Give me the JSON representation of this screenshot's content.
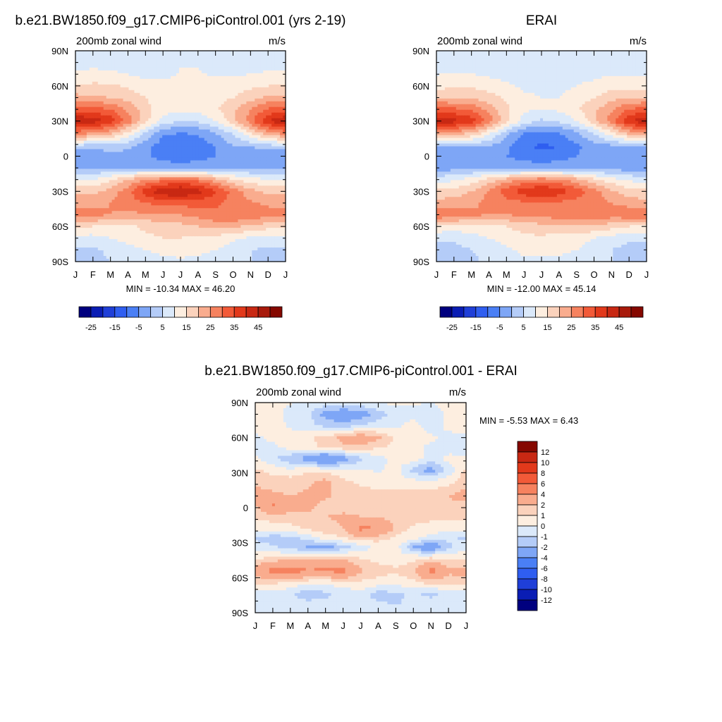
{
  "chart_data": [
    {
      "type": "heatmap",
      "id": "model",
      "title": "b.e21.BW1850.f09_g17.CMIP6-piControl.001 (yrs 2-19)",
      "subtitle_left": "200mb zonal wind",
      "subtitle_right": "m/s",
      "x_ticks": [
        "J",
        "F",
        "M",
        "A",
        "M",
        "J",
        "J",
        "A",
        "S",
        "O",
        "N",
        "D",
        "J"
      ],
      "y_ticks": [
        "90N",
        "60N",
        "30N",
        "0",
        "30S",
        "60S",
        "90S"
      ],
      "stats": "MIN = -10.34 MAX =  46.20",
      "colorbar_labels": [
        "-25",
        "-15",
        "-5",
        "5",
        "15",
        "25",
        "35",
        "45"
      ],
      "levels": [
        -30,
        -25,
        -20,
        -15,
        -10,
        -5,
        0,
        5,
        10,
        15,
        20,
        25,
        30,
        35,
        40,
        45,
        50
      ],
      "colors": [
        "#00007f",
        "#0a1db4",
        "#1f3fd8",
        "#2f5ef0",
        "#4a7ff5",
        "#7ea6f6",
        "#b4ccf8",
        "#dbe9fa",
        "#fdeee0",
        "#fbd2bc",
        "#f9ac8e",
        "#f6825f",
        "#f25a38",
        "#e2391b",
        "#c82813",
        "#a81a0b",
        "#850800"
      ],
      "bands": [
        {
          "lat": 90,
          "u": [
            7,
            7,
            6,
            6,
            6,
            6,
            7,
            7,
            6,
            6,
            6,
            7,
            7
          ]
        },
        {
          "lat": 75,
          "u": [
            9,
            10,
            9,
            8,
            7,
            8,
            10,
            10,
            9,
            8,
            8,
            9,
            9
          ]
        },
        {
          "lat": 60,
          "u": [
            15,
            16,
            16,
            14,
            12,
            11,
            11,
            11,
            11,
            12,
            14,
            15,
            15
          ]
        },
        {
          "lat": 50,
          "u": [
            22,
            21,
            20,
            18,
            15,
            12,
            12,
            12,
            13,
            15,
            18,
            21,
            22
          ]
        },
        {
          "lat": 40,
          "u": [
            33,
            32,
            30,
            24,
            17,
            12,
            11,
            12,
            14,
            19,
            25,
            31,
            33
          ]
        },
        {
          "lat": 30,
          "u": [
            45,
            43,
            38,
            28,
            17,
            8,
            5,
            6,
            10,
            18,
            28,
            40,
            45
          ]
        },
        {
          "lat": 20,
          "u": [
            28,
            26,
            22,
            14,
            4,
            -4,
            -5,
            -4,
            0,
            6,
            15,
            24,
            28
          ]
        },
        {
          "lat": 8,
          "u": [
            2,
            1,
            2,
            1,
            -3,
            -8,
            -10,
            -9,
            -5,
            -1,
            0,
            2,
            2
          ]
        },
        {
          "lat": 0,
          "u": [
            -4,
            -3,
            -2,
            -2,
            -4,
            -7,
            -8,
            -7,
            -5,
            -3,
            -3,
            -4,
            -4
          ]
        },
        {
          "lat": -10,
          "u": [
            -2,
            -1,
            0,
            0,
            0,
            -2,
            -3,
            -2,
            -1,
            0,
            -1,
            -2,
            -2
          ]
        },
        {
          "lat": -20,
          "u": [
            10,
            10,
            14,
            20,
            25,
            28,
            30,
            28,
            22,
            15,
            12,
            10,
            10
          ]
        },
        {
          "lat": -30,
          "u": [
            18,
            18,
            22,
            28,
            38,
            44,
            46,
            42,
            36,
            28,
            22,
            18,
            18
          ]
        },
        {
          "lat": -40,
          "u": [
            24,
            24,
            25,
            28,
            30,
            32,
            32,
            32,
            31,
            28,
            26,
            24,
            24
          ]
        },
        {
          "lat": -50,
          "u": [
            27,
            26,
            25,
            24,
            24,
            24,
            25,
            27,
            29,
            30,
            29,
            27,
            27
          ]
        },
        {
          "lat": -60,
          "u": [
            16,
            15,
            14,
            14,
            16,
            17,
            18,
            20,
            22,
            21,
            19,
            17,
            16
          ]
        },
        {
          "lat": -70,
          "u": [
            8,
            8,
            10,
            12,
            14,
            15,
            15,
            14,
            13,
            11,
            9,
            8,
            8
          ]
        },
        {
          "lat": -80,
          "u": [
            4,
            4,
            6,
            8,
            10,
            11,
            12,
            11,
            10,
            8,
            5,
            4,
            4
          ]
        },
        {
          "lat": -90,
          "u": [
            4,
            4,
            5,
            7,
            8,
            9,
            9,
            9,
            8,
            7,
            5,
            4,
            4
          ]
        }
      ]
    },
    {
      "type": "heatmap",
      "id": "obs",
      "title": "ERAI",
      "subtitle_left": "200mb zonal wind",
      "subtitle_right": "m/s",
      "x_ticks": [
        "J",
        "F",
        "M",
        "A",
        "M",
        "J",
        "J",
        "A",
        "S",
        "O",
        "N",
        "D",
        "J"
      ],
      "y_ticks": [
        "90N",
        "60N",
        "30N",
        "0",
        "30S",
        "60S",
        "90S"
      ],
      "stats": "MIN = -12.00 MAX =  45.14",
      "colorbar_labels": [
        "-25",
        "-15",
        "-5",
        "5",
        "15",
        "25",
        "35",
        "45"
      ],
      "levels": [
        -30,
        -25,
        -20,
        -15,
        -10,
        -5,
        0,
        5,
        10,
        15,
        20,
        25,
        30,
        35,
        40,
        45,
        50
      ],
      "colors": [
        "#00007f",
        "#0a1db4",
        "#1f3fd8",
        "#2f5ef0",
        "#4a7ff5",
        "#7ea6f6",
        "#b4ccf8",
        "#dbe9fa",
        "#fdeee0",
        "#fbd2bc",
        "#f9ac8e",
        "#f6825f",
        "#f25a38",
        "#e2391b",
        "#c82813",
        "#a81a0b",
        "#850800"
      ],
      "bands": [
        {
          "lat": 90,
          "u": [
            7,
            7,
            7,
            6,
            6,
            6,
            7,
            7,
            7,
            6,
            6,
            7,
            7
          ]
        },
        {
          "lat": 75,
          "u": [
            8,
            9,
            8,
            7,
            6,
            7,
            7,
            8,
            8,
            8,
            8,
            8,
            8
          ]
        },
        {
          "lat": 60,
          "u": [
            13,
            14,
            14,
            13,
            11,
            9,
            9,
            9,
            10,
            11,
            13,
            13,
            13
          ]
        },
        {
          "lat": 50,
          "u": [
            20,
            20,
            19,
            17,
            14,
            11,
            10,
            10,
            12,
            15,
            18,
            20,
            20
          ]
        },
        {
          "lat": 40,
          "u": [
            32,
            31,
            29,
            23,
            16,
            11,
            10,
            11,
            14,
            19,
            24,
            30,
            32
          ]
        },
        {
          "lat": 30,
          "u": [
            44,
            42,
            38,
            28,
            17,
            8,
            4,
            6,
            10,
            18,
            28,
            40,
            44
          ]
        },
        {
          "lat": 20,
          "u": [
            26,
            24,
            20,
            12,
            2,
            -5,
            -6,
            -5,
            -1,
            6,
            14,
            22,
            26
          ]
        },
        {
          "lat": 8,
          "u": [
            0,
            -1,
            0,
            -1,
            -4,
            -9,
            -11,
            -10,
            -6,
            -3,
            -2,
            0,
            0
          ]
        },
        {
          "lat": 0,
          "u": [
            -5,
            -4,
            -3,
            -3,
            -5,
            -7,
            -8,
            -7,
            -5,
            -3,
            -3,
            -5,
            -5
          ]
        },
        {
          "lat": -10,
          "u": [
            -3,
            -2,
            -1,
            -1,
            -1,
            -2,
            -3,
            -2,
            -1,
            -1,
            -2,
            -3,
            -3
          ]
        },
        {
          "lat": -20,
          "u": [
            8,
            9,
            12,
            17,
            22,
            26,
            28,
            26,
            22,
            16,
            12,
            9,
            8
          ]
        },
        {
          "lat": -30,
          "u": [
            16,
            17,
            20,
            26,
            33,
            38,
            40,
            38,
            33,
            27,
            21,
            17,
            16
          ]
        },
        {
          "lat": -40,
          "u": [
            22,
            23,
            24,
            26,
            28,
            29,
            29,
            29,
            28,
            27,
            25,
            23,
            22
          ]
        },
        {
          "lat": -50,
          "u": [
            30,
            28,
            26,
            25,
            25,
            26,
            27,
            28,
            29,
            29,
            28,
            29,
            30
          ]
        },
        {
          "lat": -60,
          "u": [
            14,
            13,
            13,
            13,
            15,
            17,
            18,
            19,
            20,
            19,
            17,
            15,
            14
          ]
        },
        {
          "lat": -70,
          "u": [
            6,
            6,
            8,
            10,
            12,
            14,
            14,
            13,
            12,
            10,
            8,
            6,
            6
          ]
        },
        {
          "lat": -80,
          "u": [
            3,
            3,
            5,
            7,
            9,
            11,
            11,
            11,
            10,
            8,
            5,
            3,
            3
          ]
        },
        {
          "lat": -90,
          "u": [
            3,
            3,
            4,
            6,
            8,
            9,
            9,
            9,
            8,
            7,
            5,
            3,
            3
          ]
        }
      ]
    },
    {
      "type": "heatmap",
      "id": "diff",
      "title": "b.e21.BW1850.f09_g17.CMIP6-piControl.001 - ERAI",
      "subtitle_left": "200mb zonal wind",
      "subtitle_right": "m/s",
      "x_ticks": [
        "J",
        "F",
        "M",
        "A",
        "M",
        "J",
        "J",
        "A",
        "S",
        "O",
        "N",
        "D",
        "J"
      ],
      "y_ticks": [
        "90N",
        "60N",
        "30N",
        "0",
        "30S",
        "60S",
        "90S"
      ],
      "stats": "MIN =  -5.53 MAX =   6.43",
      "colorbar_labels": [
        "12",
        "10",
        "8",
        "6",
        "4",
        "2",
        "1",
        "0",
        "-1",
        "-2",
        "-4",
        "-6",
        "-8",
        "-10",
        "-12"
      ],
      "levels": [
        -12,
        -10,
        -8,
        -6,
        -4,
        -2,
        -1,
        0,
        1,
        2,
        4,
        6,
        8,
        10,
        12
      ],
      "colors": [
        "#00007f",
        "#0a1db4",
        "#1f3fd8",
        "#2f5ef0",
        "#4a7ff5",
        "#7ea6f6",
        "#b4ccf8",
        "#dbe9fa",
        "#fdeee0",
        "#fbd2bc",
        "#f9ac8e",
        "#f6825f",
        "#f25a38",
        "#e2391b",
        "#c82813",
        "#850800"
      ],
      "bands": [
        {
          "lat": 90,
          "u": [
            0.3,
            0.2,
            0.1,
            -0.2,
            -0.3,
            -0.4,
            -0.2,
            0.1,
            0.2,
            0.1,
            0,
            0.2,
            0.3
          ]
        },
        {
          "lat": 80,
          "u": [
            0.5,
            0.6,
            -0.5,
            -0.8,
            -2.5,
            -3.2,
            -2.8,
            -1.5,
            -0.6,
            -0.4,
            -0.5,
            0.2,
            0.5
          ]
        },
        {
          "lat": 70,
          "u": [
            0.4,
            0.8,
            -0.3,
            -0.6,
            -1.2,
            -1.5,
            -0.8,
            -0.4,
            -0.3,
            0.5,
            -0.6,
            0.3,
            0.4
          ]
        },
        {
          "lat": 60,
          "u": [
            -0.3,
            0.4,
            0.8,
            0.9,
            1.2,
            2.4,
            3.1,
            2.2,
            0.8,
            0.5,
            0.2,
            -0.3,
            -0.3
          ]
        },
        {
          "lat": 52,
          "u": [
            -0.6,
            -0.4,
            0.6,
            0.8,
            1.2,
            1.8,
            1.6,
            1.2,
            0.6,
            0.2,
            -0.2,
            -0.5,
            -0.6
          ]
        },
        {
          "lat": 42,
          "u": [
            0.2,
            -0.8,
            -1.8,
            -2.6,
            -4.2,
            -2.8,
            -1.2,
            -0.4,
            0.3,
            0.6,
            -0.4,
            0.3,
            0.2
          ]
        },
        {
          "lat": 32,
          "u": [
            1.2,
            0.6,
            0.2,
            0.8,
            0.6,
            0.4,
            0.2,
            -0.2,
            0.4,
            -1.4,
            -2.6,
            -0.6,
            1.2
          ]
        },
        {
          "lat": 22,
          "u": [
            1.8,
            1.6,
            1.6,
            1.8,
            2.4,
            1.2,
            0.8,
            0.6,
            0.5,
            0.4,
            0.3,
            0.6,
            1.8
          ]
        },
        {
          "lat": 10,
          "u": [
            2.4,
            2.2,
            2.0,
            2.2,
            2.1,
            1.8,
            1.5,
            1.3,
            1.3,
            1.4,
            1.6,
            2.0,
            2.4
          ]
        },
        {
          "lat": 2,
          "u": [
            1.8,
            4.2,
            2.6,
            2.2,
            1.8,
            1.6,
            1.8,
            1.6,
            1.4,
            1.3,
            1.5,
            1.8,
            1.8
          ]
        },
        {
          "lat": -8,
          "u": [
            1.2,
            1.4,
            1.6,
            1.8,
            2.0,
            2.2,
            2.0,
            1.8,
            1.6,
            1.4,
            1.3,
            1.2,
            1.2
          ]
        },
        {
          "lat": -18,
          "u": [
            0.4,
            0.5,
            0.6,
            1.2,
            1.6,
            2.0,
            4.4,
            4.2,
            1.6,
            0.8,
            0.5,
            0.4,
            0.4
          ]
        },
        {
          "lat": -26,
          "u": [
            -1.2,
            -1.6,
            -1.4,
            -0.6,
            0.4,
            0.9,
            1.8,
            1.4,
            0.8,
            0.4,
            -0.4,
            -0.8,
            -1.2
          ]
        },
        {
          "lat": -34,
          "u": [
            -0.4,
            -0.8,
            -1.4,
            -2.2,
            -2.8,
            -1.6,
            -0.6,
            0.3,
            0.6,
            -2.2,
            -3.6,
            -1.2,
            -0.4
          ]
        },
        {
          "lat": -42,
          "u": [
            0.6,
            0.8,
            1.0,
            1.4,
            1.6,
            1.2,
            0.8,
            0.6,
            0.4,
            0.4,
            0.6,
            0.7,
            0.6
          ]
        },
        {
          "lat": -54,
          "u": [
            2.6,
            4.6,
            4.8,
            4.2,
            4.4,
            4.6,
            2.2,
            1.4,
            1.2,
            1.8,
            4.8,
            2.4,
            2.6
          ]
        },
        {
          "lat": -64,
          "u": [
            1.2,
            1.4,
            0.6,
            0.4,
            0.2,
            0.6,
            0.8,
            0.6,
            0.4,
            0.8,
            1.4,
            1.2,
            1.2
          ]
        },
        {
          "lat": -74,
          "u": [
            -0.6,
            -0.4,
            -0.8,
            -1.8,
            -1.2,
            -0.6,
            -0.4,
            -1.6,
            -1.2,
            -0.8,
            -1.4,
            -0.6,
            -0.6
          ]
        },
        {
          "lat": -82,
          "u": [
            -0.2,
            -0.8,
            -0.4,
            -0.6,
            -0.8,
            -0.3,
            -0.6,
            -0.8,
            -1.2,
            -0.6,
            -0.4,
            -0.6,
            -0.2
          ]
        },
        {
          "lat": -90,
          "u": [
            -0.1,
            -0.3,
            -0.2,
            -0.3,
            -0.4,
            -0.2,
            -0.3,
            -0.4,
            -0.5,
            -0.3,
            -0.2,
            -0.2,
            -0.1
          ]
        }
      ]
    }
  ]
}
